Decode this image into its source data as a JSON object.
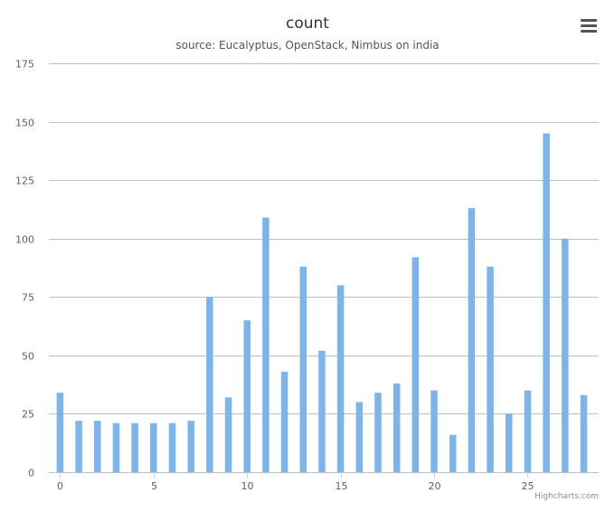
{
  "chart_data": {
    "type": "bar",
    "title": "count",
    "subtitle": "source: Eucalyptus, OpenStack, Nimbus on india",
    "xlabel": "",
    "ylabel": "",
    "x": [
      0,
      1,
      2,
      3,
      4,
      5,
      6,
      7,
      8,
      9,
      10,
      11,
      12,
      13,
      14,
      15,
      16,
      17,
      18,
      19,
      20,
      21,
      22,
      23,
      24,
      25,
      26,
      27,
      28
    ],
    "values": [
      34,
      22,
      22,
      21,
      21,
      21,
      21,
      22,
      75,
      32,
      65,
      109,
      43,
      88,
      52,
      80,
      30,
      34,
      38,
      92,
      35,
      16,
      113,
      88,
      25,
      35,
      145,
      100,
      33
    ],
    "xlim": [
      -0.6,
      28.8
    ],
    "ylim": [
      0,
      175
    ],
    "y_ticks": [
      0,
      25,
      50,
      75,
      100,
      125,
      150,
      175
    ],
    "x_ticks": [
      0,
      5,
      10,
      15,
      20,
      25
    ],
    "bar_color": "#7cb5ec",
    "grid": true,
    "legend": "none"
  },
  "ui": {
    "menu_icon": "hamburger-menu-icon",
    "credits": "Highcharts.com"
  }
}
